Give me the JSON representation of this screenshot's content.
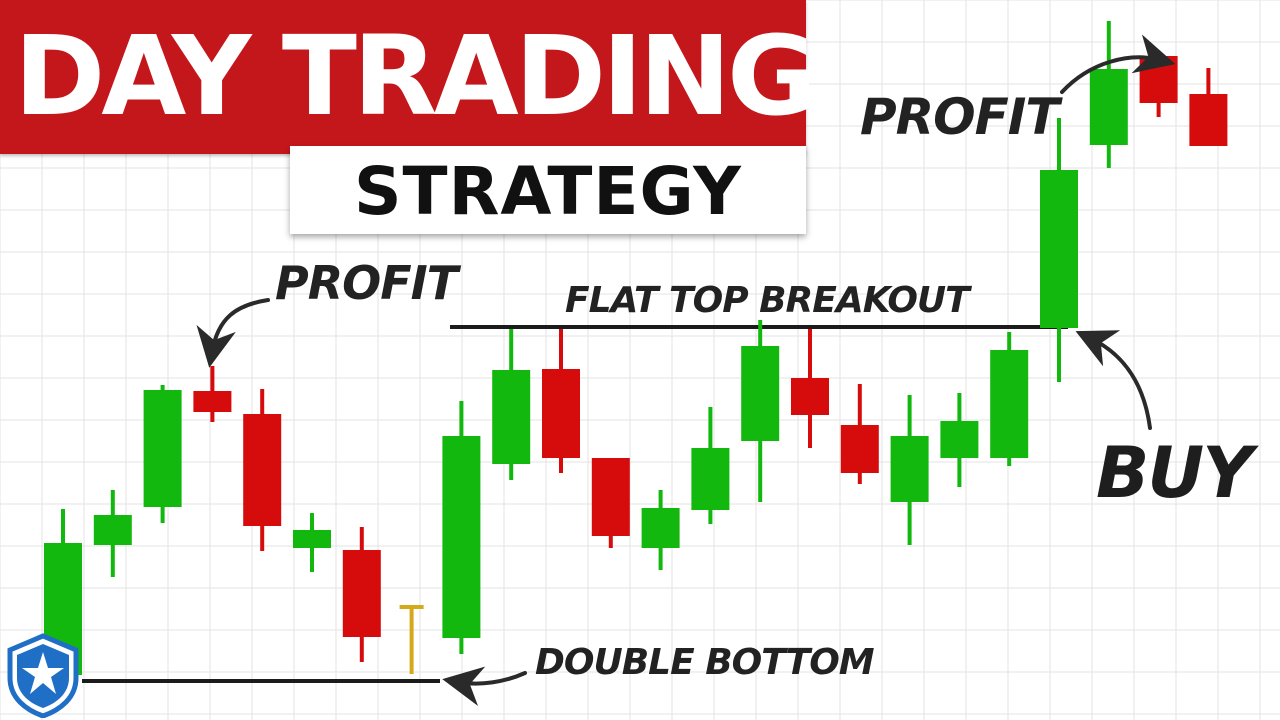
{
  "header": {
    "title": "DAY TRADING",
    "subtitle": "STRATEGY"
  },
  "annotations": {
    "profit_left": "PROFIT",
    "profit_right": "PROFIT",
    "flat_top": "FLAT TOP BREAKOUT",
    "double_bottom": "DOUBLE BOTTOM",
    "buy": "BUY"
  },
  "logo": {
    "icon": "warrior-trading-shield-icon"
  },
  "colors": {
    "bullish": "#12b80e",
    "bearish": "#d60c0c",
    "neutral": "#d4aa1a",
    "title_bg": "#c4171c",
    "grid": "#e3e3e3",
    "level_line": "#1b1b1b",
    "arrow": "#2a2a2a"
  },
  "chart_data": {
    "type": "candlestick",
    "grid": true,
    "title": "DAY TRADING STRATEGY",
    "ylim": [
      0,
      720
    ],
    "candles": [
      {
        "open": 45,
        "close": 177,
        "high": 211,
        "low": 45
      },
      {
        "open": 175,
        "close": 205,
        "high": 230,
        "low": 143
      },
      {
        "open": 213,
        "close": 330,
        "high": 335,
        "low": 197
      },
      {
        "open": 329,
        "close": 308,
        "high": 354,
        "low": 298
      },
      {
        "open": 306,
        "close": 194,
        "high": 331,
        "low": 169
      },
      {
        "open": 172,
        "close": 190,
        "high": 207,
        "low": 148
      },
      {
        "open": 170,
        "close": 83,
        "high": 193,
        "low": 58
      },
      {
        "open": 113,
        "close": 113,
        "high": 113,
        "low": 46
      },
      {
        "open": 82,
        "close": 284,
        "high": 319,
        "low": 66
      },
      {
        "open": 256,
        "close": 350,
        "high": 391,
        "low": 240
      },
      {
        "open": 351,
        "close": 262,
        "high": 391,
        "low": 247
      },
      {
        "open": 262,
        "close": 184,
        "high": 262,
        "low": 172
      },
      {
        "open": 172,
        "close": 212,
        "high": 230,
        "low": 150
      },
      {
        "open": 210,
        "close": 272,
        "high": 313,
        "low": 196
      },
      {
        "open": 279,
        "close": 374,
        "high": 400,
        "low": 218
      },
      {
        "open": 342,
        "close": 305,
        "high": 391,
        "low": 272
      },
      {
        "open": 295,
        "close": 247,
        "high": 336,
        "low": 236
      },
      {
        "open": 218,
        "close": 284,
        "high": 325,
        "low": 175
      },
      {
        "open": 262,
        "close": 299,
        "high": 327,
        "low": 233
      },
      {
        "open": 262,
        "close": 370,
        "high": 388,
        "low": 254
      },
      {
        "open": 392,
        "close": 550,
        "high": 602,
        "low": 338
      },
      {
        "open": 575,
        "close": 651,
        "high": 699,
        "low": 552
      },
      {
        "open": 664,
        "close": 617,
        "high": 664,
        "low": 603
      },
      {
        "open": 626,
        "close": 574,
        "high": 652,
        "low": 574
      }
    ],
    "levels": [
      {
        "label": "FLAT TOP BREAKOUT",
        "value": 393
      },
      {
        "label": "DOUBLE BOTTOM",
        "value": 39
      }
    ]
  }
}
